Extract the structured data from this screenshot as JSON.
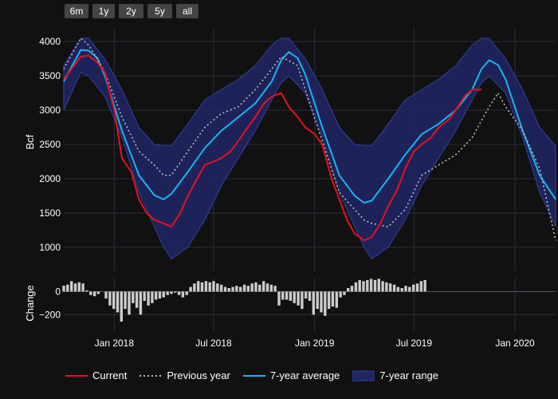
{
  "range_buttons": [
    "6m",
    "1y",
    "2y",
    "5y",
    "all"
  ],
  "legend": {
    "current": "Current",
    "previous_year": "Previous year",
    "avg": "7-year average",
    "range": "7-year range"
  },
  "colors": {
    "current": "#e8101e",
    "previous_year": "#bbbbbb",
    "avg": "#18b4f0",
    "range_fill": "#1f2660",
    "range_edge": "#34409a",
    "change_bar": "#cccccc",
    "grid": "#2c2f3c"
  },
  "chart_data": [
    {
      "type": "line",
      "ylabel": "Bcf",
      "yticks": [
        1000,
        1500,
        2000,
        2500,
        3000,
        3500,
        4000
      ],
      "ylim": [
        650,
        4200
      ],
      "xlim": [
        "2017-10-01",
        "2020-03-15"
      ],
      "xticks": [
        {
          "date": "2018-01-01",
          "label": "Jan 2018"
        },
        {
          "date": "2018-07-01",
          "label": "Jul 2018"
        },
        {
          "date": "2019-01-01",
          "label": "Jan 2019"
        },
        {
          "date": "2019-07-01",
          "label": "Jul 2019"
        },
        {
          "date": "2020-01-01",
          "label": "Jan 2020"
        }
      ],
      "series": [
        {
          "name": "7-year range",
          "kind": "band",
          "x": [
            "2017-10-01",
            "2017-11-01",
            "2017-11-15",
            "2017-12-15",
            "2018-01-15",
            "2018-02-15",
            "2018-03-15",
            "2018-04-01",
            "2018-04-15",
            "2018-05-15",
            "2018-06-15",
            "2018-07-15",
            "2018-08-15",
            "2018-09-15",
            "2018-10-15",
            "2018-11-01",
            "2018-11-15",
            "2018-12-15",
            "2019-01-15",
            "2019-02-15",
            "2019-03-15",
            "2019-04-01",
            "2019-04-15",
            "2019-05-15",
            "2019-06-15",
            "2019-07-15",
            "2019-08-15",
            "2019-09-15",
            "2019-10-15",
            "2019-11-01",
            "2019-11-15",
            "2019-12-15",
            "2020-01-15",
            "2020-02-15",
            "2020-03-15"
          ],
          "low": [
            3000,
            3550,
            3500,
            3200,
            2600,
            1800,
            1300,
            1000,
            830,
            1000,
            1400,
            1900,
            2300,
            2700,
            3150,
            3400,
            3500,
            3250,
            2600,
            1800,
            1300,
            1000,
            830,
            1000,
            1400,
            1900,
            2300,
            2700,
            3150,
            3400,
            3500,
            3250,
            2600,
            1800,
            1300
          ],
          "high": [
            3650,
            4050,
            4050,
            3750,
            3300,
            2750,
            2500,
            2480,
            2480,
            2800,
            3150,
            3300,
            3450,
            3650,
            3950,
            4050,
            4050,
            3750,
            3300,
            2750,
            2500,
            2480,
            2480,
            2800,
            3150,
            3300,
            3450,
            3650,
            3950,
            4050,
            4050,
            3750,
            3300,
            2750,
            2480
          ]
        },
        {
          "name": "7-year average",
          "x": [
            "2017-10-01",
            "2017-11-01",
            "2017-11-15",
            "2017-12-01",
            "2017-12-15",
            "2018-01-15",
            "2018-02-15",
            "2018-03-15",
            "2018-04-01",
            "2018-04-15",
            "2018-05-15",
            "2018-06-15",
            "2018-07-15",
            "2018-08-15",
            "2018-09-15",
            "2018-10-15",
            "2018-11-01",
            "2018-11-15",
            "2018-12-01",
            "2018-12-15",
            "2019-01-15",
            "2019-02-15",
            "2019-03-15",
            "2019-04-01",
            "2019-04-15",
            "2019-05-15",
            "2019-06-15",
            "2019-07-15",
            "2019-08-15",
            "2019-09-15",
            "2019-10-15",
            "2019-11-01",
            "2019-11-15",
            "2019-12-01",
            "2019-12-15",
            "2020-01-15",
            "2020-02-15",
            "2020-03-15"
          ],
          "y": [
            3420,
            3880,
            3870,
            3760,
            3500,
            2700,
            2050,
            1760,
            1700,
            1780,
            2100,
            2450,
            2700,
            2900,
            3100,
            3420,
            3730,
            3850,
            3760,
            3520,
            2750,
            2050,
            1750,
            1650,
            1680,
            2000,
            2350,
            2650,
            2800,
            3000,
            3300,
            3600,
            3730,
            3660,
            3450,
            2700,
            2050,
            1700
          ]
        },
        {
          "name": "Previous year",
          "x": [
            "2017-10-01",
            "2017-11-01",
            "2017-11-15",
            "2017-12-01",
            "2017-12-15",
            "2018-01-15",
            "2018-02-15",
            "2018-03-15",
            "2018-04-01",
            "2018-04-15",
            "2018-05-15",
            "2018-06-15",
            "2018-07-15",
            "2018-08-15",
            "2018-09-15",
            "2018-10-15",
            "2018-11-01",
            "2018-11-15",
            "2018-12-01",
            "2018-12-15",
            "2019-01-15",
            "2019-02-15",
            "2019-03-15",
            "2019-04-01",
            "2019-04-15",
            "2019-05-15",
            "2019-06-15",
            "2019-07-15",
            "2019-08-15",
            "2019-09-15",
            "2019-10-15",
            "2019-11-01",
            "2019-11-15",
            "2019-12-01",
            "2019-12-15",
            "2020-01-15",
            "2020-02-15",
            "2020-03-15"
          ],
          "y": [
            3600,
            4050,
            3950,
            3750,
            3550,
            2900,
            2400,
            2200,
            2050,
            2050,
            2400,
            2750,
            2950,
            3050,
            3300,
            3600,
            3780,
            3720,
            3650,
            3300,
            2550,
            1800,
            1550,
            1400,
            1350,
            1300,
            1550,
            2050,
            2200,
            2350,
            2600,
            2850,
            3050,
            3250,
            3050,
            2700,
            2150,
            1100
          ]
        },
        {
          "name": "Current",
          "x": [
            "2017-10-01",
            "2017-10-15",
            "2017-11-01",
            "2017-11-15",
            "2017-12-01",
            "2017-12-15",
            "2018-01-01",
            "2018-01-15",
            "2018-02-01",
            "2018-02-15",
            "2018-03-01",
            "2018-03-15",
            "2018-04-01",
            "2018-04-15",
            "2018-05-01",
            "2018-05-15",
            "2018-06-01",
            "2018-06-15",
            "2018-07-01",
            "2018-07-15",
            "2018-08-01",
            "2018-08-15",
            "2018-09-01",
            "2018-09-15",
            "2018-10-01",
            "2018-10-15",
            "2018-11-01",
            "2018-11-15",
            "2018-12-01",
            "2018-12-15",
            "2019-01-01",
            "2019-01-15",
            "2019-02-01",
            "2019-02-15",
            "2019-03-01",
            "2019-03-15",
            "2019-04-01",
            "2019-04-15",
            "2019-05-01",
            "2019-05-15",
            "2019-06-01",
            "2019-06-15",
            "2019-07-01",
            "2019-07-15",
            "2019-08-01",
            "2019-08-15",
            "2019-09-01",
            "2019-09-15",
            "2019-10-01",
            "2019-10-15",
            "2019-11-01"
          ],
          "y": [
            3450,
            3600,
            3780,
            3800,
            3700,
            3550,
            3000,
            2300,
            2100,
            1700,
            1500,
            1400,
            1350,
            1300,
            1500,
            1750,
            2000,
            2200,
            2250,
            2300,
            2400,
            2550,
            2750,
            2900,
            3100,
            3200,
            3250,
            3050,
            2900,
            2750,
            2650,
            2500,
            2000,
            1700,
            1400,
            1200,
            1100,
            1150,
            1350,
            1600,
            1850,
            2150,
            2400,
            2500,
            2600,
            2750,
            2850,
            3000,
            3200,
            3300,
            3300
          ]
        }
      ]
    },
    {
      "type": "bar",
      "ylabel": "Change",
      "yticks": [
        0,
        -200
      ],
      "ylim": [
        -350,
        120
      ],
      "xstart": "2017-10-01",
      "interval_days": 7,
      "values": [
        50,
        60,
        90,
        70,
        80,
        70,
        10,
        -30,
        -40,
        -20,
        0,
        -60,
        -120,
        -150,
        -180,
        -260,
        -150,
        -200,
        -100,
        -140,
        -200,
        -80,
        -120,
        -100,
        -70,
        -60,
        -50,
        -30,
        -20,
        -10,
        -30,
        -50,
        -30,
        40,
        70,
        90,
        80,
        90,
        80,
        90,
        70,
        60,
        40,
        30,
        40,
        50,
        40,
        60,
        50,
        70,
        80,
        60,
        90,
        70,
        60,
        50,
        -120,
        -70,
        -70,
        -80,
        -100,
        -120,
        -150,
        -60,
        -80,
        -200,
        -150,
        -180,
        -210,
        -150,
        -130,
        -140,
        -50,
        -30,
        30,
        50,
        80,
        100,
        90,
        100,
        110,
        100,
        110,
        90,
        80,
        70,
        60,
        40,
        30,
        50,
        40,
        60,
        70,
        90,
        100
      ],
      "count_note": ""
    }
  ]
}
